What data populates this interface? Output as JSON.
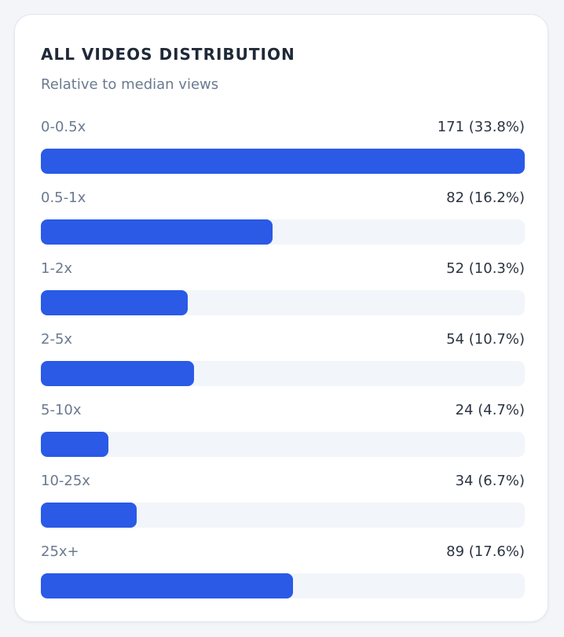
{
  "chart_data": {
    "type": "bar",
    "orientation": "horizontal",
    "title": "ALL VIDEOS DISTRIBUTION",
    "subtitle": "Relative to median views",
    "categories": [
      "0-0.5x",
      "0.5-1x",
      "1-2x",
      "2-5x",
      "5-10x",
      "10-25x",
      "25x+"
    ],
    "values": [
      171,
      82,
      52,
      54,
      24,
      34,
      89
    ],
    "value_labels": [
      "171 (33.8%)",
      "82 (16.2%)",
      "52 (10.3%)",
      "54 (10.7%)",
      "24 (4.7%)",
      "34 (6.7%)",
      "89 (17.6%)"
    ],
    "percentages": [
      33.8,
      16.2,
      10.3,
      10.7,
      4.7,
      6.7,
      17.6
    ],
    "xlim": [
      0,
      171
    ],
    "grid": false,
    "bar_color": "#2a5ae6",
    "track_color": "#f2f6fa"
  }
}
